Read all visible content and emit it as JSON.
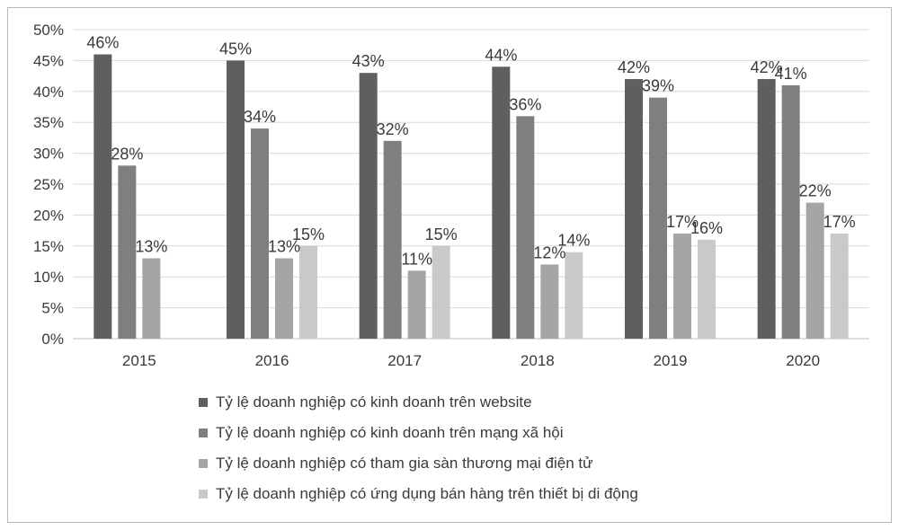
{
  "chart_data": {
    "type": "bar",
    "title": "",
    "xlabel": "",
    "ylabel": "",
    "categories": [
      "2015",
      "2016",
      "2017",
      "2018",
      "2019",
      "2020"
    ],
    "ylim": [
      0,
      50
    ],
    "yticks": [
      "0%",
      "5%",
      "10%",
      "15%",
      "20%",
      "25%",
      "30%",
      "35%",
      "40%",
      "45%",
      "50%"
    ],
    "grid": true,
    "legend_position": "bottom",
    "series": [
      {
        "name": "Tỷ lệ doanh nghiệp có kinh doanh trên website",
        "color": "#5f5f5f",
        "values": [
          46,
          45,
          43,
          44,
          42,
          42
        ],
        "labels": [
          "46%",
          "45%",
          "43%",
          "44%",
          "42%",
          "42%"
        ]
      },
      {
        "name": "Tỷ lệ doanh nghiệp có kinh doanh trên mạng xã hội",
        "color": "#7f7f7f",
        "values": [
          28,
          34,
          32,
          36,
          39,
          41
        ],
        "labels": [
          "28%",
          "34%",
          "32%",
          "36%",
          "39%",
          "41%"
        ]
      },
      {
        "name": "Tỷ lệ doanh nghiệp có tham gia sàn thương mại điện tử",
        "color": "#a5a5a5",
        "values": [
          13,
          13,
          11,
          12,
          17,
          22
        ],
        "labels": [
          "13%",
          "13%",
          "11%",
          "12%",
          "17%",
          "22%"
        ]
      },
      {
        "name": "Tỷ lệ doanh nghiệp có ứng dụng bán hàng trên thiết bị di động",
        "color": "#c9c9c9",
        "values": [
          null,
          15,
          15,
          14,
          16,
          17
        ],
        "labels": [
          "",
          "15%",
          "15%",
          "14%",
          "16%",
          "17%"
        ]
      }
    ]
  }
}
